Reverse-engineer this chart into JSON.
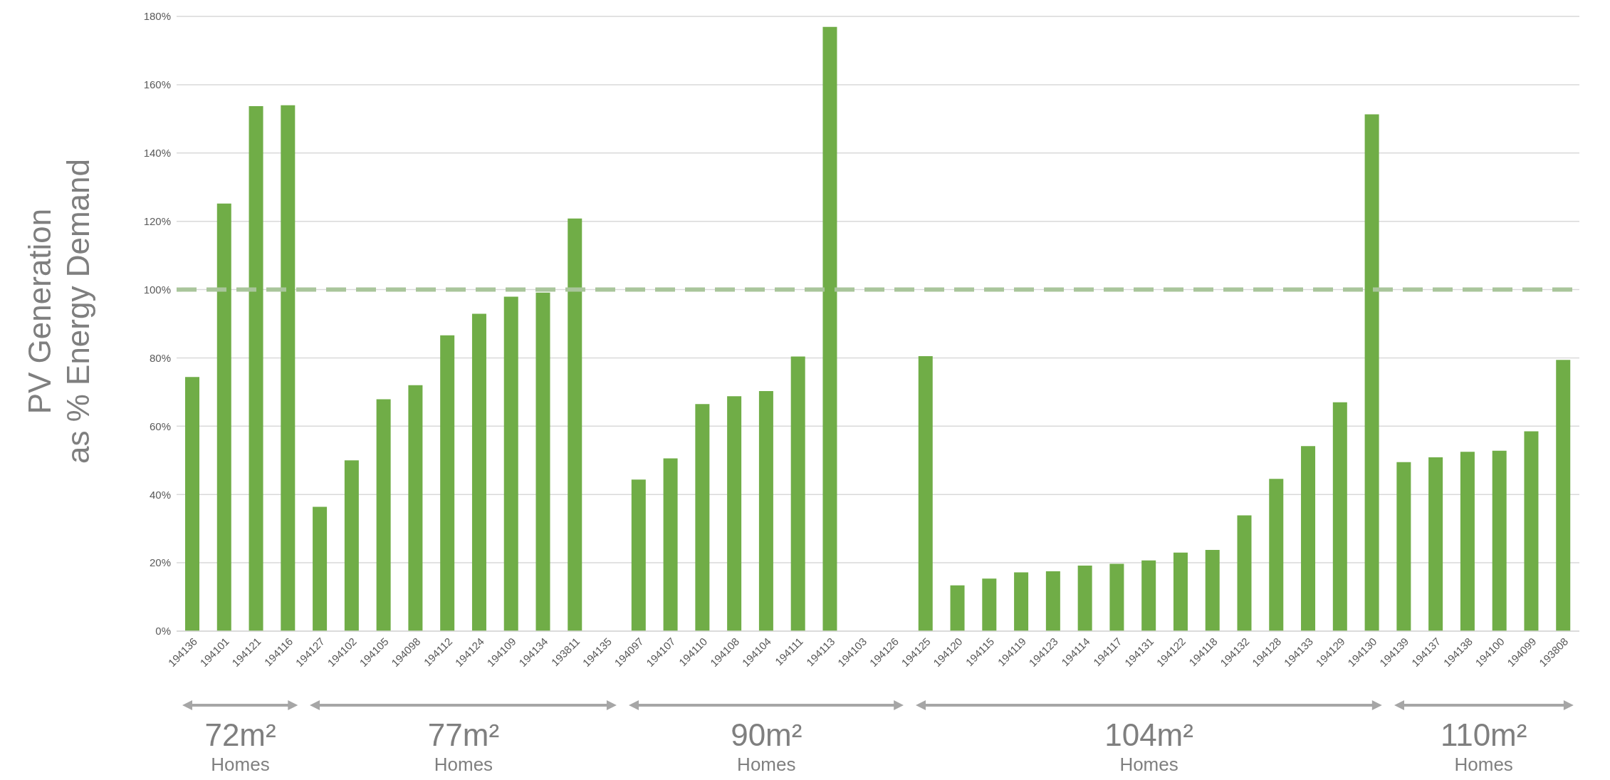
{
  "chart_data": {
    "type": "bar",
    "ylabel": "PV Generation\nas % Energy Demand",
    "categories": [
      "194136",
      "194101",
      "194121",
      "194116",
      "194127",
      "194102",
      "194105",
      "194098",
      "194112",
      "194124",
      "194109",
      "194134",
      "193811",
      "194135",
      "194097",
      "194107",
      "194110",
      "194108",
      "194104",
      "194111",
      "194113",
      "194103",
      "194126",
      "194125",
      "194120",
      "194115",
      "194119",
      "194123",
      "194114",
      "194117",
      "194131",
      "194122",
      "194118",
      "194132",
      "194128",
      "194133",
      "194129",
      "194130",
      "194139",
      "194137",
      "194138",
      "194100",
      "194099",
      "193808"
    ],
    "values": [
      74.4,
      125.2,
      153.7,
      154.0,
      36.4,
      50.0,
      67.9,
      72.0,
      86.6,
      92.9,
      97.9,
      99.1,
      120.8,
      null,
      44.4,
      50.6,
      66.5,
      68.8,
      70.3,
      80.4,
      176.9,
      null,
      null,
      80.5,
      13.4,
      15.4,
      17.2,
      17.5,
      19.2,
      19.7,
      20.7,
      23.0,
      23.8,
      33.9,
      44.6,
      54.2,
      67.0,
      151.3,
      49.5,
      50.9,
      52.5,
      52.8,
      58.5,
      79.4
    ],
    "color": "#70ad47",
    "ylim": [
      0,
      180
    ],
    "yticks": [
      {
        "value": 0,
        "label": "0%"
      },
      {
        "value": 20,
        "label": "20%"
      },
      {
        "value": 40,
        "label": "40%"
      },
      {
        "value": 60,
        "label": "60%"
      },
      {
        "value": 80,
        "label": "80%"
      },
      {
        "value": 100,
        "label": "100%"
      },
      {
        "value": 120,
        "label": "120%"
      },
      {
        "value": 140,
        "label": "140%"
      },
      {
        "value": 160,
        "label": "160%"
      },
      {
        "value": 180,
        "label": "180%"
      }
    ],
    "grid": "y",
    "ref_lines": [
      {
        "axis": "y",
        "value": 100,
        "color": "#a9c59b",
        "line_style": "dashed"
      }
    ],
    "annotations": [
      "72m² Homes",
      "77m² Homes",
      "90m² Homes",
      "104m² Homes",
      "110m² Homes"
    ]
  }
}
